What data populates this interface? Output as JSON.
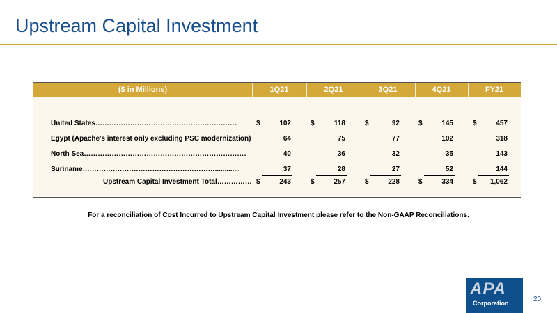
{
  "slide": {
    "title": "Upstream Capital Investment",
    "page_number": "20",
    "footnote": "For a reconciliation of Cost Incurred to Upstream Capital Investment please refer to the Non-GAAP Reconciliations."
  },
  "table": {
    "header": {
      "label": "($ in Millions)",
      "cols": [
        "1Q21",
        "2Q21",
        "3Q21",
        "4Q21",
        "FY21"
      ]
    },
    "currency": "$",
    "rows": [
      {
        "label": "United States……………………………………………………………..........",
        "values": [
          "102",
          "118",
          "92",
          "145",
          "457"
        ]
      },
      {
        "label": "Egypt (Apache's interest only excluding PSC modernization)",
        "values": [
          "64",
          "75",
          "77",
          "102",
          "318"
        ]
      },
      {
        "label": "North Sea………………………………………………………………………..",
        "values": [
          "40",
          "36",
          "32",
          "35",
          "143"
        ]
      },
      {
        "label": "Suriname…………………………………………………......................",
        "values": [
          "37",
          "28",
          "27",
          "52",
          "144"
        ]
      }
    ],
    "total": {
      "label": "Upstream Capital Investment Total……………",
      "values": [
        "243",
        "257",
        "228",
        "334",
        "1,062"
      ]
    }
  },
  "logo": {
    "word": "APA",
    "sub": "Corporation"
  }
}
